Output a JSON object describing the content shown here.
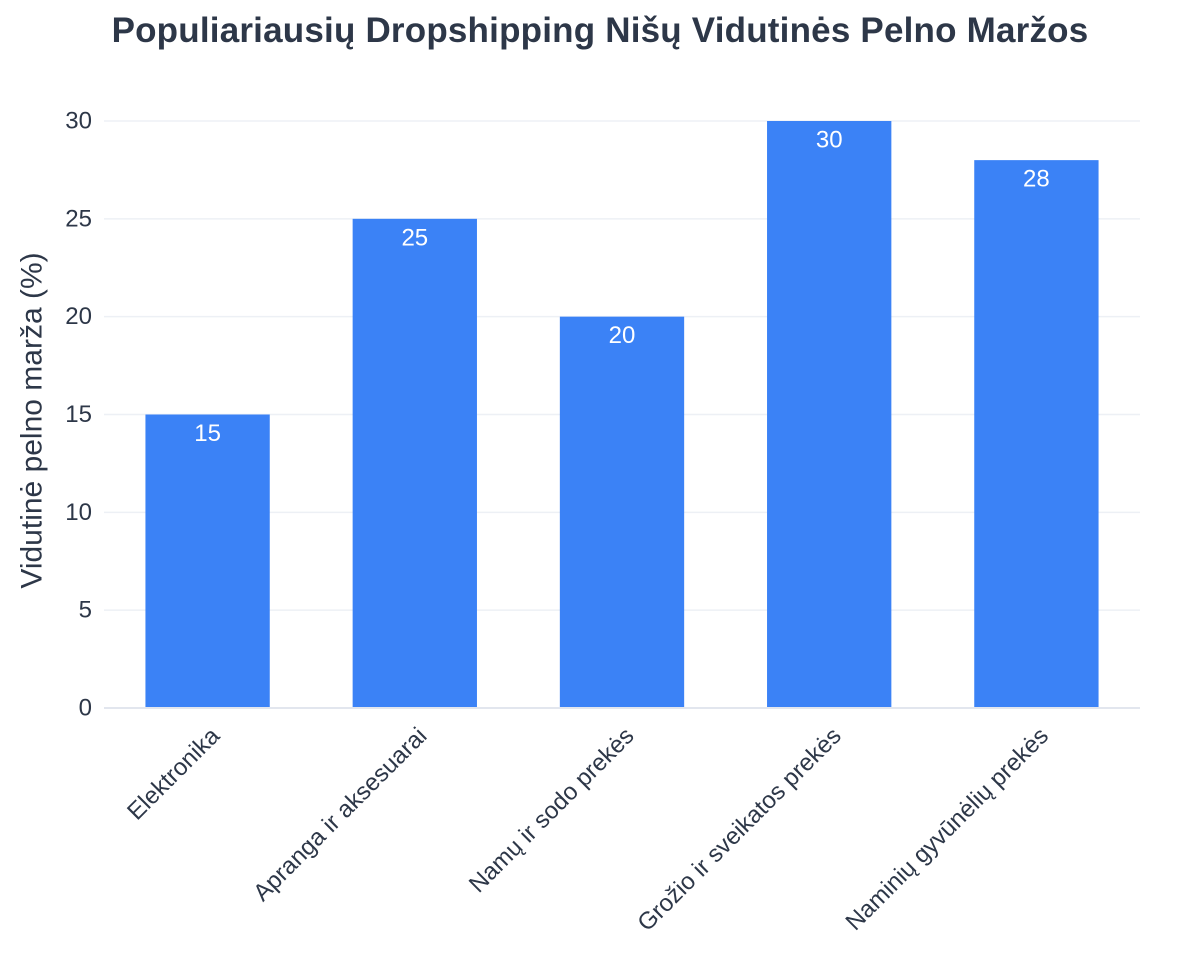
{
  "chart_data": {
    "type": "bar",
    "title": "Populiariausių Dropshipping Nišų Vidutinės Pelno Maržos",
    "xlabel": "",
    "ylabel": "Vidutinė pelno marža (%)",
    "categories": [
      "Elektronika",
      "Apranga ir aksesuarai",
      "Namų ir sodo prekės",
      "Grožio ir sveikatos prekės",
      "Naminių gyvūnėlių prekės"
    ],
    "values": [
      15,
      25,
      20,
      30,
      28
    ],
    "value_labels": [
      "15",
      "25",
      "20",
      "30",
      "28"
    ],
    "ylim": [
      0,
      30
    ],
    "yticks": [
      0,
      5,
      10,
      15,
      20,
      25,
      30
    ],
    "ytick_labels": [
      "0",
      "5",
      "10",
      "15",
      "20",
      "25",
      "30"
    ],
    "grid": true,
    "bar_color": "#3b82f6",
    "text_color": "#2d3748",
    "grid_color": "#edf0f5"
  }
}
